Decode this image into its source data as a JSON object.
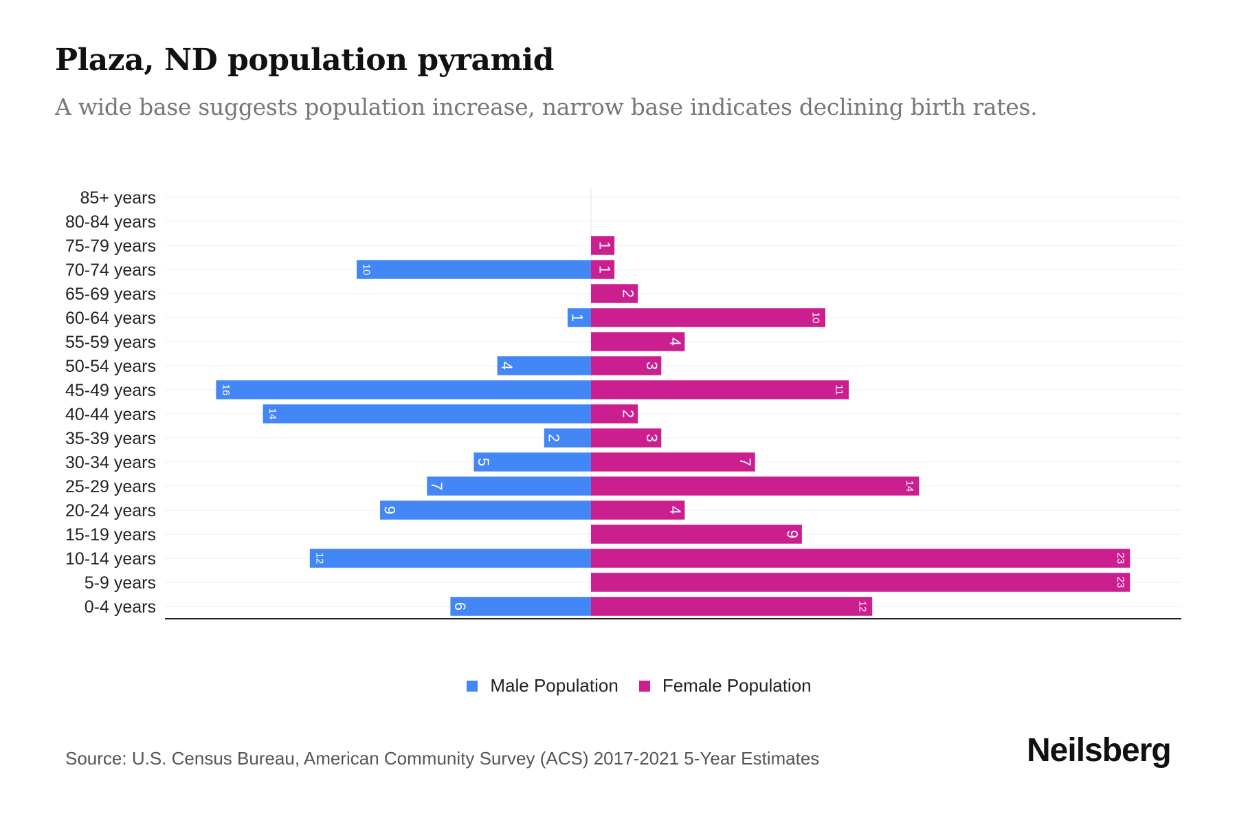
{
  "header": {
    "title": "Plaza, ND population pyramid",
    "subtitle": "A wide base suggests population increase, narrow base indicates declining birth rates."
  },
  "chart_data": {
    "type": "bar",
    "orientation": "horizontal-pyramid",
    "categories": [
      "85+ years",
      "80-84 years",
      "75-79 years",
      "70-74 years",
      "65-69 years",
      "60-64 years",
      "55-59 years",
      "50-54 years",
      "45-49 years",
      "40-44 years",
      "35-39 years",
      "30-34 years",
      "25-29 years",
      "20-24 years",
      "15-19 years",
      "10-14 years",
      "5-9 years",
      "0-4 years"
    ],
    "series": [
      {
        "name": "Male Population",
        "color": "#4287f5",
        "values": [
          0,
          0,
          0,
          10,
          0,
          1,
          0,
          4,
          16,
          14,
          2,
          5,
          7,
          9,
          0,
          12,
          0,
          6
        ]
      },
      {
        "name": "Female Population",
        "color": "#cc1f8f",
        "values": [
          0,
          0,
          1,
          1,
          2,
          10,
          4,
          3,
          11,
          2,
          3,
          7,
          14,
          4,
          9,
          23,
          23,
          12
        ]
      }
    ],
    "xlim": [
      -18,
      25
    ],
    "legend": "bottom-center"
  },
  "legend": {
    "male": "Male Population",
    "female": "Female Population"
  },
  "footer": {
    "source": "Source: U.S. Census Bureau, American Community Survey (ACS) 2017-2021 5-Year Estimates",
    "logo": "Neilsberg"
  }
}
